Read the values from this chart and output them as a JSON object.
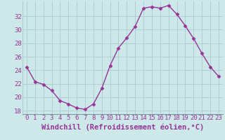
{
  "x": [
    0,
    1,
    2,
    3,
    4,
    5,
    6,
    7,
    8,
    9,
    10,
    11,
    12,
    13,
    14,
    15,
    16,
    17,
    18,
    19,
    20,
    21,
    22,
    23
  ],
  "y": [
    24.5,
    22.3,
    21.9,
    21.0,
    19.5,
    19.0,
    18.4,
    18.2,
    19.0,
    21.3,
    24.7,
    27.3,
    28.8,
    30.5,
    33.2,
    33.4,
    33.2,
    33.6,
    32.3,
    30.6,
    28.7,
    26.5,
    24.5,
    23.1
  ],
  "line_color": "#993399",
  "marker": "D",
  "marker_size": 2.5,
  "bg_color": "#cce8e8",
  "grid_color": "#aacccc",
  "xlabel": "Windchill (Refroidissement éolien,°C)",
  "xlabel_color": "#993399",
  "tick_color": "#993399",
  "ylim": [
    17.5,
    34.2
  ],
  "yticks": [
    18,
    20,
    22,
    24,
    26,
    28,
    30,
    32
  ],
  "xticks": [
    0,
    1,
    2,
    3,
    4,
    5,
    6,
    7,
    8,
    9,
    10,
    11,
    12,
    13,
    14,
    15,
    16,
    17,
    18,
    19,
    20,
    21,
    22,
    23
  ],
  "tick_fontsize": 6.5,
  "xlabel_fontsize": 7.5,
  "linewidth": 1.0
}
